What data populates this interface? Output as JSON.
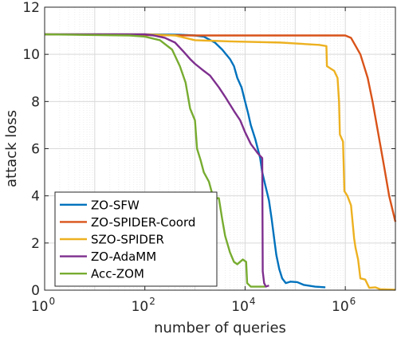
{
  "chart_data": {
    "type": "line",
    "title": "",
    "xlabel": "number of queries",
    "ylabel": "attack loss",
    "xscale": "log",
    "xlim": [
      1,
      10000000
    ],
    "ylim": [
      0,
      12
    ],
    "grid": true,
    "legend_position": "bottom-left",
    "x_ticks": [
      {
        "value": 1,
        "base": "10",
        "exp": "0"
      },
      {
        "value": 100,
        "base": "10",
        "exp": "2"
      },
      {
        "value": 10000,
        "base": "10",
        "exp": "4"
      },
      {
        "value": 1000000,
        "base": "10",
        "exp": "6"
      }
    ],
    "y_ticks": [
      "0",
      "2",
      "4",
      "6",
      "8",
      "10",
      "12"
    ],
    "series": [
      {
        "name": "ZO-SFW",
        "color": "#0072BD",
        "points": [
          [
            1,
            10.85
          ],
          [
            100,
            10.85
          ],
          [
            500,
            10.83
          ],
          [
            1000,
            10.8
          ],
          [
            1500,
            10.75
          ],
          [
            2500,
            10.5
          ],
          [
            3500,
            10.2
          ],
          [
            5000,
            9.8
          ],
          [
            6000,
            9.5
          ],
          [
            7000,
            9.0
          ],
          [
            8500,
            8.6
          ],
          [
            10000,
            8.0
          ],
          [
            11500,
            7.5
          ],
          [
            13000,
            7.0
          ],
          [
            16000,
            6.4
          ],
          [
            20000,
            5.6
          ],
          [
            22000,
            5.0
          ],
          [
            25000,
            4.5
          ],
          [
            30000,
            3.8
          ],
          [
            34000,
            3.0
          ],
          [
            38000,
            2.2
          ],
          [
            42000,
            1.5
          ],
          [
            48000,
            0.9
          ],
          [
            55000,
            0.5
          ],
          [
            65000,
            0.3
          ],
          [
            80000,
            0.36
          ],
          [
            110000,
            0.34
          ],
          [
            150000,
            0.22
          ],
          [
            250000,
            0.15
          ],
          [
            400000,
            0.12
          ]
        ]
      },
      {
        "name": "ZO-SPIDER-Coord",
        "color": "#D95319",
        "points": [
          [
            1,
            10.85
          ],
          [
            1000,
            10.8
          ],
          [
            100000,
            10.8
          ],
          [
            1000000,
            10.8
          ],
          [
            1300000,
            10.7
          ],
          [
            2000000,
            10.0
          ],
          [
            2800000,
            9.0
          ],
          [
            3500000,
            8.0
          ],
          [
            4500000,
            6.7
          ],
          [
            6000000,
            5.2
          ],
          [
            7500000,
            4.0
          ],
          [
            10000000,
            2.9
          ]
        ]
      },
      {
        "name": "SZO-SPIDER",
        "color": "#EDB120",
        "points": [
          [
            1,
            10.85
          ],
          [
            100,
            10.85
          ],
          [
            400,
            10.8
          ],
          [
            1000,
            10.6
          ],
          [
            5000,
            10.55
          ],
          [
            50000,
            10.5
          ],
          [
            300000,
            10.4
          ],
          [
            420000,
            10.35
          ],
          [
            430000,
            9.5
          ],
          [
            600000,
            9.3
          ],
          [
            700000,
            9.0
          ],
          [
            750000,
            8.0
          ],
          [
            780000,
            6.6
          ],
          [
            900000,
            6.3
          ],
          [
            960000,
            4.2
          ],
          [
            1100000,
            4.0
          ],
          [
            1300000,
            3.6
          ],
          [
            1500000,
            2.2
          ],
          [
            1600000,
            1.8
          ],
          [
            1800000,
            1.3
          ],
          [
            2000000,
            0.5
          ],
          [
            2500000,
            0.45
          ],
          [
            3000000,
            0.1
          ],
          [
            4000000,
            0.12
          ],
          [
            5000000,
            0.04
          ],
          [
            10000000,
            0.02
          ]
        ]
      },
      {
        "name": "ZO-AdaMM",
        "color": "#7E2F8E",
        "points": [
          [
            1,
            10.85
          ],
          [
            100,
            10.85
          ],
          [
            150,
            10.8
          ],
          [
            250,
            10.7
          ],
          [
            400,
            10.5
          ],
          [
            600,
            10.1
          ],
          [
            800,
            9.8
          ],
          [
            1000,
            9.6
          ],
          [
            1500,
            9.3
          ],
          [
            2000,
            9.1
          ],
          [
            3000,
            8.6
          ],
          [
            4000,
            8.2
          ],
          [
            6000,
            7.6
          ],
          [
            8000,
            7.2
          ],
          [
            10000,
            6.7
          ],
          [
            13000,
            6.2
          ],
          [
            18000,
            5.8
          ],
          [
            22000,
            5.6
          ],
          [
            22500,
            0.8
          ],
          [
            24000,
            0.3
          ],
          [
            26000,
            0.15
          ],
          [
            30000,
            0.2
          ]
        ]
      },
      {
        "name": "Acc-ZOM",
        "color": "#77AC30",
        "points": [
          [
            1,
            10.85
          ],
          [
            50,
            10.8
          ],
          [
            100,
            10.75
          ],
          [
            200,
            10.6
          ],
          [
            350,
            10.2
          ],
          [
            500,
            9.5
          ],
          [
            650,
            8.8
          ],
          [
            800,
            7.7
          ],
          [
            1000,
            7.2
          ],
          [
            1100,
            6.0
          ],
          [
            1300,
            5.5
          ],
          [
            1500,
            5.0
          ],
          [
            1900,
            4.6
          ],
          [
            2200,
            4.1
          ],
          [
            2500,
            3.9
          ],
          [
            3000,
            3.9
          ],
          [
            3500,
            3.0
          ],
          [
            4000,
            2.3
          ],
          [
            5000,
            1.6
          ],
          [
            6000,
            1.2
          ],
          [
            7000,
            1.1
          ],
          [
            9000,
            1.3
          ],
          [
            10500,
            1.2
          ],
          [
            11000,
            0.3
          ],
          [
            13000,
            0.15
          ],
          [
            25000,
            0.15
          ]
        ]
      }
    ]
  }
}
